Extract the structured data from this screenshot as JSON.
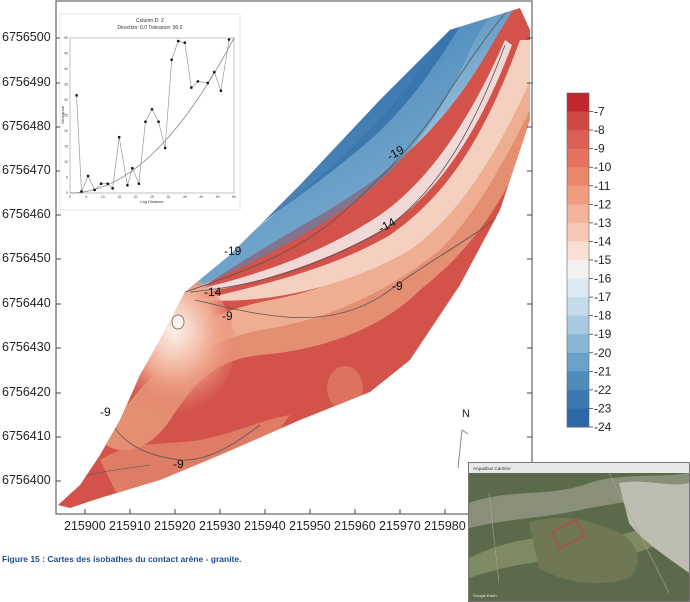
{
  "map": {
    "y_ticks": [
      "6756500",
      "6756490",
      "6756480",
      "6756470",
      "6756460",
      "6756450",
      "6756440",
      "6756430",
      "6756420",
      "6756410",
      "6756400"
    ],
    "x_ticks": [
      "215900",
      "215910",
      "215920",
      "215930",
      "215940",
      "215950",
      "215960",
      "215970",
      "215980"
    ],
    "contour_labels": [
      "-19",
      "-14",
      "-19",
      "-14",
      "-9",
      "-9",
      "-9",
      "-9"
    ],
    "north_label": "N"
  },
  "legend": {
    "levels": [
      "-7",
      "-8",
      "-9",
      "-10",
      "-11",
      "-12",
      "-13",
      "-14",
      "-15",
      "-16",
      "-17",
      "-18",
      "-19",
      "-20",
      "-21",
      "-22",
      "-23",
      "-24"
    ],
    "colors": [
      "#c1272d",
      "#cf4a44",
      "#da5f55",
      "#e3725f",
      "#ea876d",
      "#f09c80",
      "#f4b29a",
      "#f7c8b5",
      "#fae0d4",
      "#f2f0f0",
      "#dde9f2",
      "#c4dbea",
      "#a8cae0",
      "#8ab6d5",
      "#6ba1c9",
      "#4f8cbc",
      "#3a7ab1",
      "#2b6aa6"
    ]
  },
  "variogram": {
    "title_line1": "Column D: Z",
    "title_line2": "Direction: 0.0   Tolerance: 90.0",
    "xlabel": "Lag Distance",
    "ylabel": "Variogram",
    "x_ticks": [
      "0",
      "5",
      "10",
      "15",
      "20",
      "25",
      "30",
      "35",
      "40",
      "45",
      "50"
    ],
    "y_ticks": [
      "0",
      "5",
      "10",
      "15",
      "20",
      "25",
      "30",
      "35",
      "40",
      "45",
      "50"
    ]
  },
  "chart_data": {
    "type": "line",
    "title": "Column D: Z",
    "xlabel": "Lag Distance",
    "ylabel": "Variogram",
    "xlim": [
      0,
      50
    ],
    "ylim": [
      0,
      50
    ],
    "series": [
      {
        "x": [
          2,
          3.5,
          5.5,
          7.5,
          9.5,
          11.5,
          13,
          15,
          17.5,
          19,
          21,
          23,
          25,
          27,
          29,
          31,
          33,
          35,
          37,
          39,
          42,
          44,
          46,
          48.5
        ],
        "y": [
          31.5,
          0.5,
          5.5,
          1,
          3,
          3,
          1.5,
          18,
          2.5,
          8,
          3,
          23,
          27,
          23,
          14.5,
          43,
          49,
          48.5,
          34,
          36,
          35.5,
          39,
          33,
          49.5
        ]
      }
    ],
    "model_curve": "parabolic"
  },
  "caption": "Figure 15 :  Cartes des isobathes du contact arène - granite.",
  "inset": {
    "title": "Arquaibus Carrière",
    "footer": "Google Earth"
  }
}
